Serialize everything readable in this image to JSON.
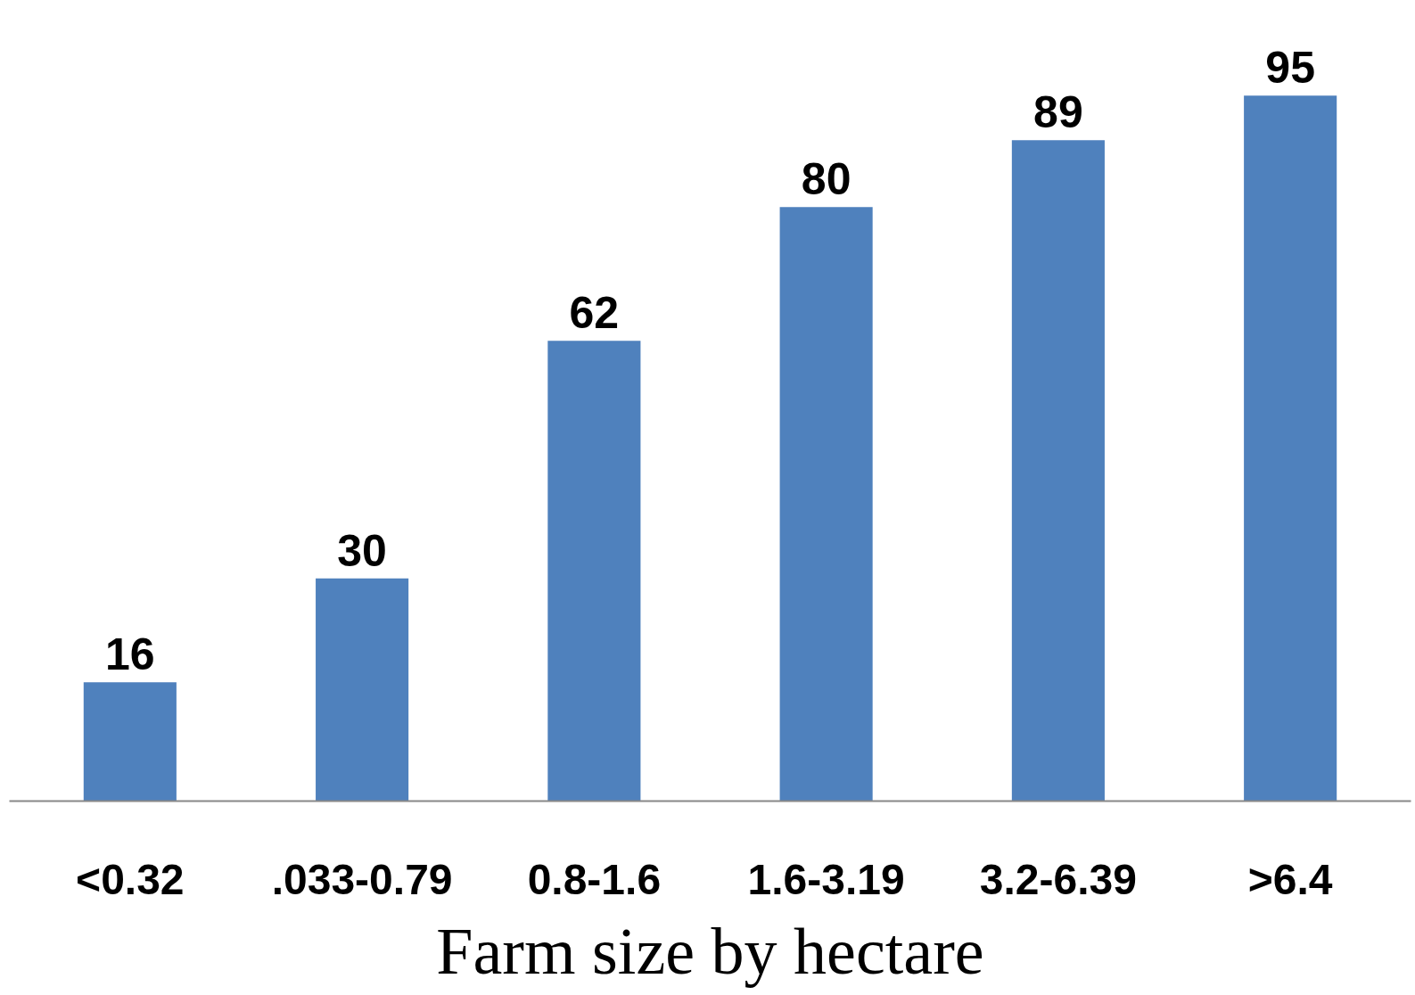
{
  "chart_data": {
    "type": "bar",
    "xlabel": "Farm size by hectare",
    "categories": [
      "<0.32",
      ".033-0.79",
      "0.8-1.6",
      "1.6-3.19",
      "3.2-6.39",
      ">6.4"
    ],
    "values": [
      16,
      30,
      62,
      80,
      89,
      95
    ],
    "color": "#4f81bd",
    "data_labels": true,
    "grid": false
  }
}
